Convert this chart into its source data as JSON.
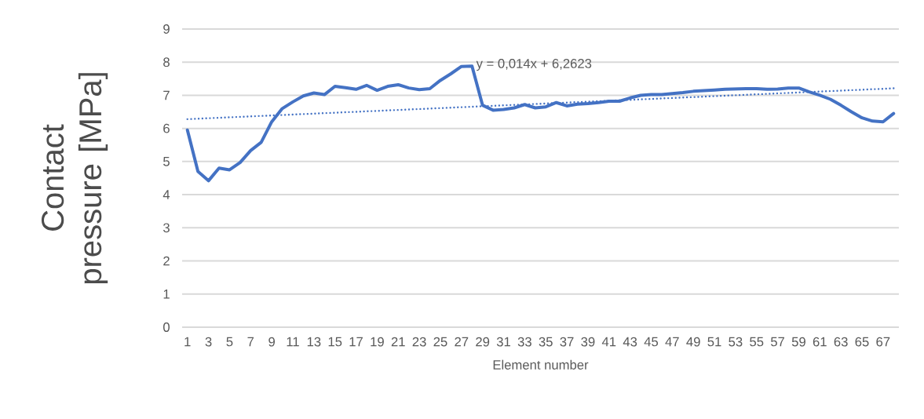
{
  "chart_data": {
    "type": "line",
    "xlabel": "Element number",
    "ylabel": "Contact pressure [MPa]",
    "x": [
      1,
      2,
      3,
      4,
      5,
      6,
      7,
      8,
      9,
      10,
      11,
      12,
      13,
      14,
      15,
      16,
      17,
      18,
      19,
      20,
      21,
      22,
      23,
      24,
      25,
      26,
      27,
      28,
      29,
      30,
      31,
      32,
      33,
      34,
      35,
      36,
      37,
      38,
      39,
      40,
      41,
      42,
      43,
      44,
      45,
      46,
      47,
      48,
      49,
      50,
      51,
      52,
      53,
      54,
      55,
      56,
      57,
      58,
      59,
      60,
      61,
      62,
      63,
      64,
      65,
      66,
      67,
      68
    ],
    "xlim": [
      0.5,
      68.5
    ],
    "xticks": [
      1,
      3,
      5,
      7,
      9,
      11,
      13,
      15,
      17,
      19,
      21,
      23,
      25,
      27,
      29,
      31,
      33,
      35,
      37,
      39,
      41,
      43,
      45,
      47,
      49,
      51,
      53,
      55,
      57,
      59,
      61,
      63,
      65,
      67
    ],
    "ylim": [
      0,
      9
    ],
    "yticks": [
      0,
      1,
      2,
      3,
      4,
      5,
      6,
      7,
      8,
      9
    ],
    "grid": "y",
    "marker": "none",
    "series": [
      {
        "color": "#4472c4",
        "line_style": "solid",
        "values": [
          5.95,
          4.7,
          4.42,
          4.8,
          4.75,
          4.97,
          5.33,
          5.58,
          6.2,
          6.6,
          6.8,
          6.98,
          7.07,
          7.02,
          7.27,
          7.23,
          7.18,
          7.3,
          7.15,
          7.27,
          7.32,
          7.22,
          7.17,
          7.2,
          7.45,
          7.65,
          7.87,
          7.88,
          6.7,
          6.55,
          6.57,
          6.62,
          6.72,
          6.62,
          6.65,
          6.78,
          6.68,
          6.73,
          6.75,
          6.78,
          6.82,
          6.82,
          6.92,
          7.0,
          7.02,
          7.02,
          7.05,
          7.08,
          7.12,
          7.14,
          7.16,
          7.18,
          7.19,
          7.2,
          7.2,
          7.18,
          7.19,
          7.22,
          7.22,
          7.1,
          7.0,
          6.88,
          6.7,
          6.5,
          6.32,
          6.22,
          6.2,
          6.45
        ]
      },
      {
        "type": "line",
        "color": "#4472c4",
        "line_style": "dotted",
        "x": [
          1,
          68
        ],
        "values": [
          6.28,
          7.21
        ]
      }
    ],
    "annotations": [
      "y = 0,014x + 6,2623"
    ]
  }
}
